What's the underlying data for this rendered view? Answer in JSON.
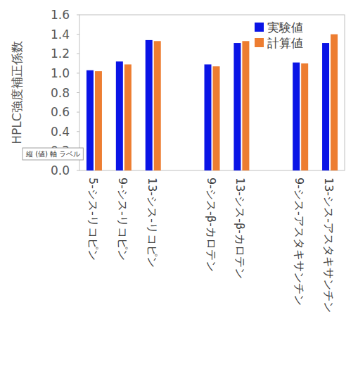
{
  "chart_data": {
    "type": "bar",
    "y_label": "HPLC強度補正係数",
    "annotation": "縦 (値) 軸 ラベル",
    "categories": [
      "5-シス-リコピン",
      "9-シス-リコピン",
      "13-シス-リコピン",
      null,
      "9-シス-β-カロテン",
      "13-シス-β-カロテン",
      null,
      "9-シス-アスタキサンチン",
      "13-シス-アスタキサンチン"
    ],
    "series": [
      {
        "name": "実験値",
        "color": "#0a14e6",
        "values": [
          1.03,
          1.12,
          1.34,
          null,
          1.09,
          1.31,
          null,
          1.11,
          1.31
        ]
      },
      {
        "name": "計算値",
        "color": "#ed7d31",
        "values": [
          1.02,
          1.09,
          1.33,
          null,
          1.07,
          1.33,
          null,
          1.1,
          1.4
        ]
      }
    ],
    "ylim": [
      0,
      1.6
    ],
    "yticks": [
      {
        "value": 0,
        "label": "0.0"
      },
      {
        "value": 0.2,
        "label": "0.2"
      },
      {
        "value": 0.4,
        "label": "0.4"
      },
      {
        "value": 0.6,
        "label": "0.6"
      },
      {
        "value": 0.8,
        "label": "0.8"
      },
      {
        "value": 1.0,
        "label": "1.0"
      },
      {
        "value": 1.2,
        "label": "1.2"
      },
      {
        "value": 1.4,
        "label": "1.4"
      },
      {
        "value": 1.6,
        "label": "1.6"
      }
    ],
    "legend": "top-right",
    "grid": false
  }
}
